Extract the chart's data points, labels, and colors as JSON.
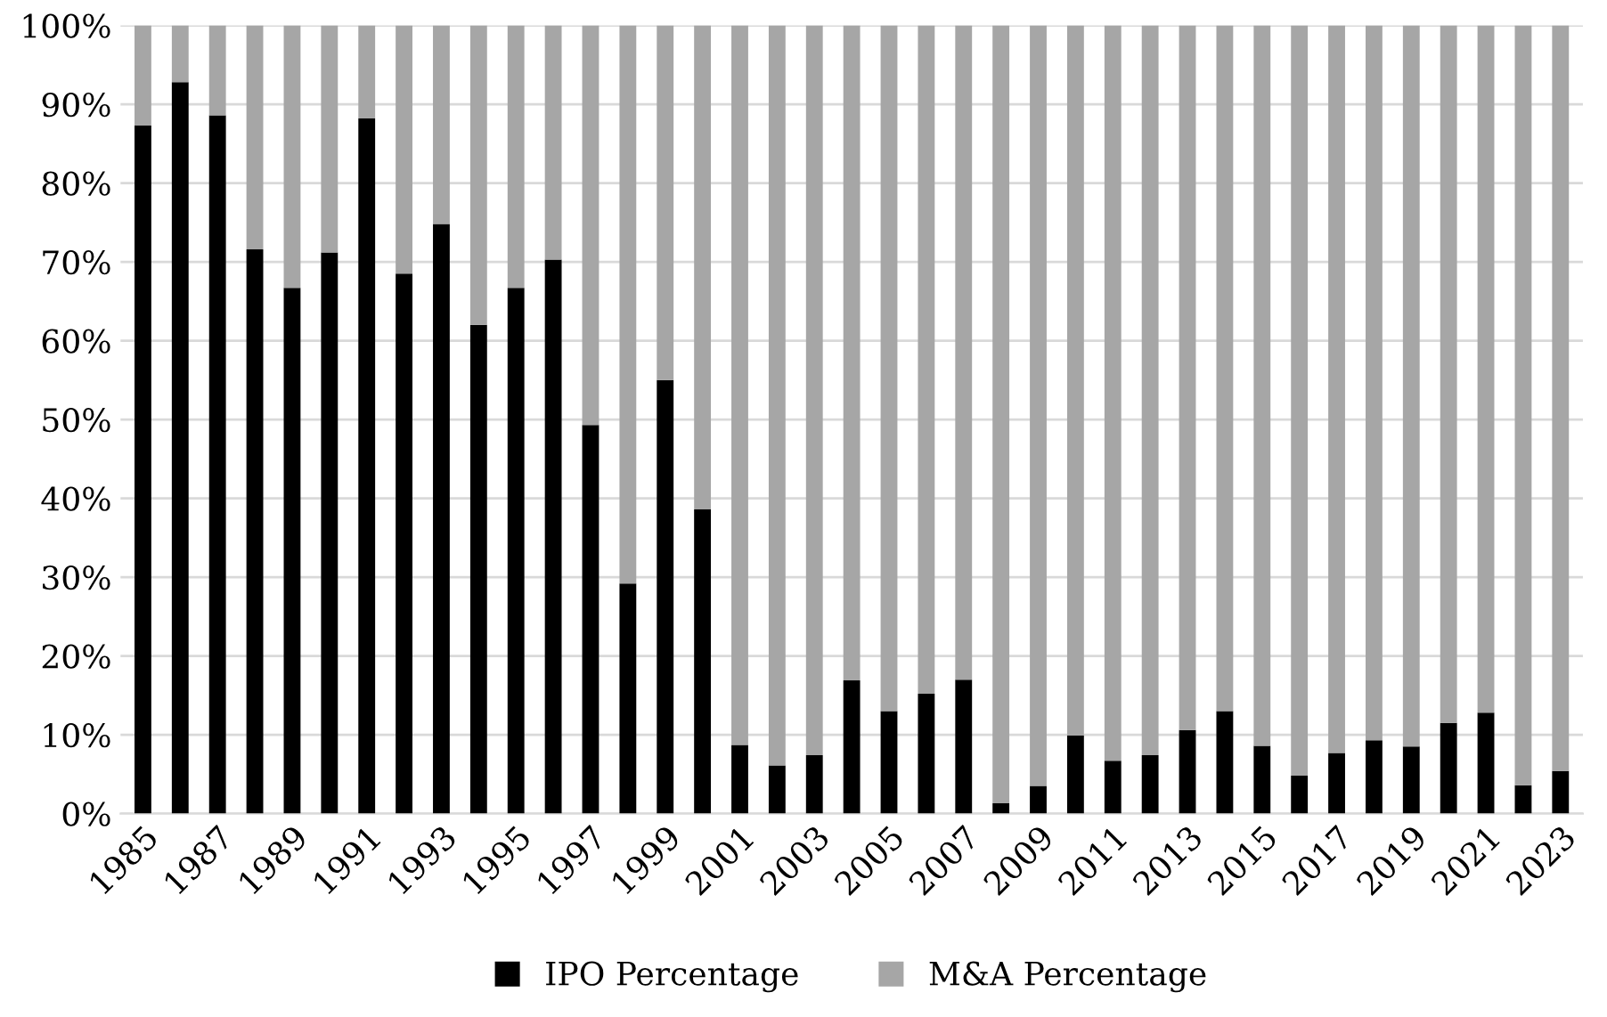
{
  "chart_data": {
    "type": "bar",
    "stacked": true,
    "categories": [
      "1985",
      null,
      "1987",
      null,
      "1989",
      null,
      "1991",
      null,
      "1993",
      null,
      "1995",
      null,
      "1997",
      null,
      "1999",
      null,
      "2001",
      null,
      "2003",
      null,
      "2005",
      null,
      "2007",
      null,
      "2009",
      null,
      "2011",
      null,
      "2013",
      null,
      "2015",
      null,
      "2017",
      null,
      "2019",
      null,
      "2021",
      null,
      "2023"
    ],
    "series": [
      {
        "name": "IPO Percentage",
        "color": "#000000",
        "values": [
          87.3,
          92.8,
          88.6,
          71.6,
          66.7,
          71.2,
          88.2,
          68.5,
          74.8,
          62.0,
          66.7,
          70.3,
          49.3,
          29.2,
          55.0,
          38.6,
          8.7,
          6.1,
          7.4,
          16.9,
          13.0,
          15.2,
          17.0,
          1.3,
          3.5,
          9.9,
          6.7,
          7.4,
          10.6,
          13.0,
          8.6,
          4.8,
          7.7,
          9.3,
          8.5,
          11.5,
          12.8,
          3.6,
          5.4
        ]
      },
      {
        "name": "M&A Percentage",
        "color": "#a6a6a6",
        "values": [
          12.7,
          7.2,
          11.4,
          28.4,
          33.3,
          28.8,
          11.8,
          31.5,
          25.2,
          38.0,
          33.3,
          29.7,
          50.7,
          70.8,
          45.0,
          61.4,
          91.3,
          93.9,
          92.6,
          83.1,
          87.0,
          84.8,
          83.0,
          98.7,
          96.5,
          90.1,
          93.3,
          92.6,
          89.4,
          87.0,
          91.4,
          95.2,
          92.3,
          90.7,
          91.5,
          88.5,
          87.2,
          96.4,
          94.6
        ]
      }
    ],
    "ylim": [
      0,
      100
    ],
    "yticks": [
      {
        "value": 0,
        "label": "0%"
      },
      {
        "value": 10,
        "label": "10%"
      },
      {
        "value": 20,
        "label": "20%"
      },
      {
        "value": 30,
        "label": "30%"
      },
      {
        "value": 40,
        "label": "40%"
      },
      {
        "value": 50,
        "label": "50%"
      },
      {
        "value": 60,
        "label": "60%"
      },
      {
        "value": 70,
        "label": "70%"
      },
      {
        "value": 80,
        "label": "80%"
      },
      {
        "value": 90,
        "label": "90%"
      },
      {
        "value": 100,
        "label": "100%"
      }
    ],
    "grid": "y",
    "legend": "bottom"
  }
}
